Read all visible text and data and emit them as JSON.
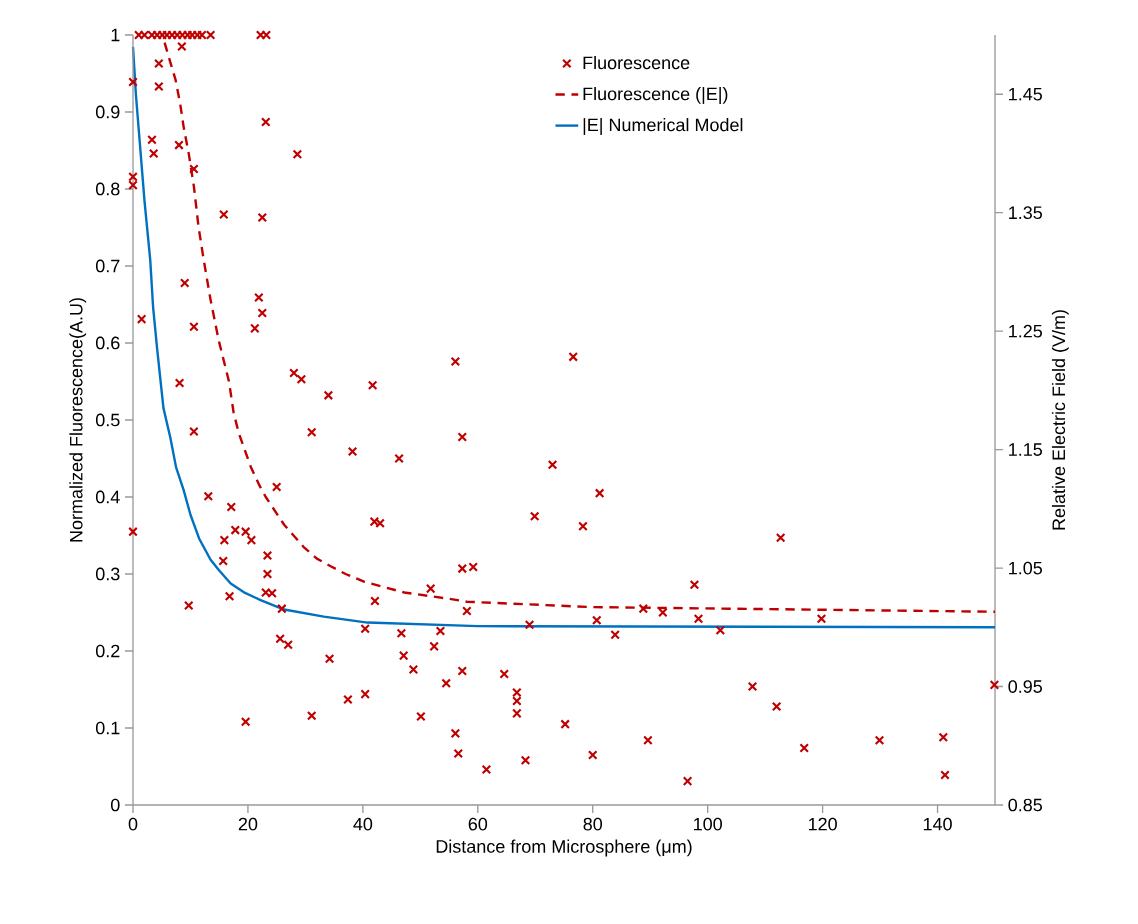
{
  "chart_data": {
    "type": "scatter",
    "xlabel": "Distance from Microsphere (μm)",
    "ylabel": "Normalized Fluorescence(A.U)",
    "y2label": "Relative Electric Field (V/m)",
    "xlim": [
      0,
      150
    ],
    "xticks": [
      0,
      20,
      40,
      60,
      80,
      100,
      120,
      140
    ],
    "ylim": [
      0,
      1
    ],
    "yticks": [
      0,
      0.1,
      0.2,
      0.3,
      0.4,
      0.5,
      0.6,
      0.7,
      0.8,
      0.9,
      1
    ],
    "y2lim": [
      0.85,
      1.5
    ],
    "y2ticks": [
      0.85,
      0.95,
      1.05,
      1.15,
      1.25,
      1.35,
      1.45
    ],
    "legend": "top",
    "grid": false,
    "series": [
      {
        "name": "Fluorescence",
        "marker": "cross",
        "color": "#c00000",
        "x": [
          1,
          2,
          3.3,
          4.2,
          5.1,
          5.9,
          6.8,
          7.7,
          8.6,
          9.5,
          10.3,
          11.2,
          12,
          13.5,
          22.2,
          23.2,
          0,
          0,
          0,
          0,
          1.5,
          8.5,
          4.5,
          4.5,
          23.1,
          3.3,
          8.0,
          3.6,
          28.6,
          10.6,
          15.8,
          22.5,
          9.0,
          21.9,
          22.5,
          10.6,
          21.2,
          8.1,
          28.0,
          29.3,
          34.0,
          41.7,
          10.6,
          31.1,
          38.2,
          46.3,
          25.0,
          13.1,
          17.1,
          42.0,
          43.0,
          17.8,
          19.6,
          15.9,
          20.6,
          23.4,
          15.7,
          23.4,
          51.8,
          16.8,
          23.1,
          24.2,
          42.1,
          9.7,
          25.9,
          40.4,
          46.7,
          53.5,
          25.6,
          27.0,
          52.4,
          47.1,
          34.2,
          48.8,
          54.5,
          40.4,
          37.4,
          31.1,
          50.1,
          19.6,
          56.1,
          76.6,
          57.3,
          73.0,
          81.2,
          69.9,
          78.3,
          57.3,
          59.2,
          97.7,
          58.1,
          88.8,
          92.2,
          98.4,
          69.0,
          80.7,
          83.9,
          102.2,
          57.3,
          64.6,
          66.8,
          66.8,
          66.8,
          75.2,
          56.1,
          89.6,
          56.6,
          80.0,
          68.3,
          61.5,
          96.5,
          112.7,
          119.8,
          107.8,
          112.0,
          149.9,
          116.8,
          129.9,
          141.0,
          141.3
        ],
        "values": [
          1,
          1,
          1,
          1,
          1,
          1,
          1,
          1,
          1,
          1,
          1,
          1,
          1,
          1,
          1,
          1,
          0.939,
          0.816,
          0.805,
          0.355,
          0.631,
          0.985,
          0.963,
          0.933,
          0.887,
          0.864,
          0.857,
          0.846,
          0.845,
          0.826,
          0.767,
          0.763,
          0.678,
          0.659,
          0.639,
          0.621,
          0.619,
          0.548,
          0.561,
          0.553,
          0.532,
          0.545,
          0.485,
          0.484,
          0.459,
          0.45,
          0.413,
          0.401,
          0.387,
          0.368,
          0.366,
          0.357,
          0.355,
          0.344,
          0.344,
          0.324,
          0.317,
          0.3,
          0.281,
          0.271,
          0.276,
          0.275,
          0.265,
          0.259,
          0.255,
          0.229,
          0.223,
          0.226,
          0.216,
          0.208,
          0.206,
          0.194,
          0.19,
          0.176,
          0.158,
          0.144,
          0.137,
          0.116,
          0.115,
          0.108,
          0.576,
          0.582,
          0.478,
          0.442,
          0.405,
          0.375,
          0.362,
          0.307,
          0.309,
          0.286,
          0.252,
          0.255,
          0.25,
          0.242,
          0.234,
          0.24,
          0.221,
          0.227,
          0.174,
          0.17,
          0.146,
          0.135,
          0.119,
          0.105,
          0.093,
          0.084,
          0.067,
          0.065,
          0.058,
          0.046,
          0.031,
          0.347,
          0.242,
          0.154,
          0.128,
          0.156,
          0.074,
          0.084,
          0.088,
          0.039
        ]
      },
      {
        "name": "Fluorescence (|E|)",
        "type": "line",
        "line_style": "dashed",
        "color": "#c00000",
        "x": [
          5.5,
          6.2,
          7.4,
          8.2,
          8.8,
          9.7,
          10.6,
          11.4,
          12.3,
          13.5,
          14.9,
          16.7,
          17.5,
          18.4,
          19.5,
          20.5,
          22,
          23.1,
          26.3,
          29.7,
          32,
          34.4,
          37,
          40.2,
          47.2,
          54.8,
          58.1,
          79.9,
          150
        ],
        "values": [
          0.99,
          0.972,
          0.942,
          0.911,
          0.881,
          0.846,
          0.803,
          0.751,
          0.708,
          0.656,
          0.604,
          0.55,
          0.51,
          0.483,
          0.46,
          0.439,
          0.415,
          0.4,
          0.364,
          0.335,
          0.32,
          0.31,
          0.3,
          0.29,
          0.276,
          0.268,
          0.264,
          0.257,
          0.251
        ]
      },
      {
        "name": "|E| Numerical Model",
        "type": "line",
        "line_style": "solid",
        "axis": "y2",
        "color": "#0070c0",
        "x": [
          0,
          0.5,
          1,
          1.5,
          2,
          2.5,
          3,
          3.5,
          4.2,
          5.3,
          6.5,
          7.5,
          8.8,
          10,
          11.5,
          13.5,
          15,
          17,
          19.5,
          22.2,
          26.3,
          33.2,
          40.8,
          60,
          150
        ],
        "values": [
          1.49,
          1.45,
          1.42,
          1.39,
          1.36,
          1.335,
          1.31,
          1.27,
          1.235,
          1.185,
          1.16,
          1.135,
          1.116,
          1.095,
          1.075,
          1.057,
          1.048,
          1.037,
          1.029,
          1.023,
          1.015,
          1.009,
          1.004,
          1.001,
          1.0
        ]
      }
    ]
  }
}
